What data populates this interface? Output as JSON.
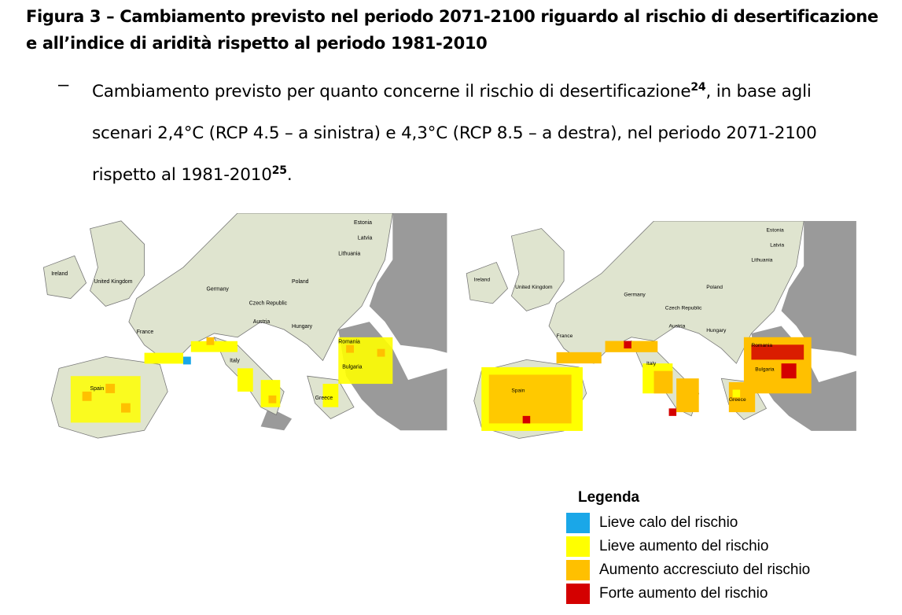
{
  "figure": {
    "title": "Figura 3 – Cambiamento previsto nel periodo 2071-2100 riguardo al rischio di desertificazione e all’indice di aridità rispetto al periodo 1981-2010"
  },
  "bullet": {
    "dash": "–",
    "text_part1": "Cambiamento previsto per quanto concerne il rischio di desertificazione",
    "footnote1": "24",
    "text_part2": ", in base agli scenari 2,4°C (RCP 4.5 – a sinistra) e 4,3°C (RCP 8.5 – a destra), nel periodo 2071-2100 rispetto al 1981-2010",
    "footnote2": "25",
    "text_end": "."
  },
  "maps": {
    "labels": {
      "estonia": "Estonia",
      "latvia": "Latvia",
      "lithuania": "Lithuania",
      "ireland": "Ireland",
      "uk": "United Kingdom",
      "poland": "Poland",
      "germany": "Germany",
      "czech": "Czech Republic",
      "austria": "Austria",
      "hungary": "Hungary",
      "france": "France",
      "romania": "Romania",
      "italy": "Italy",
      "bulgaria": "Bulgaria",
      "spain": "Spain",
      "greece": "Greece"
    },
    "left_scenario": "RCP 4.5",
    "right_scenario": "RCP 8.5"
  },
  "legend": {
    "title": "Legenda",
    "items": [
      {
        "label": "Lieve calo del rischio",
        "color": "#1aa7e8"
      },
      {
        "label": "Lieve aumento del rischio",
        "color": "#ffff00"
      },
      {
        "label": "Aumento accresciuto del rischio",
        "color": "#ffc000"
      },
      {
        "label": "Forte aumento del rischio",
        "color": "#d40000"
      }
    ]
  },
  "colors": {
    "sea": "#ffffff",
    "land": "#dfe4cf",
    "non_eu": "#9a9a9a"
  }
}
